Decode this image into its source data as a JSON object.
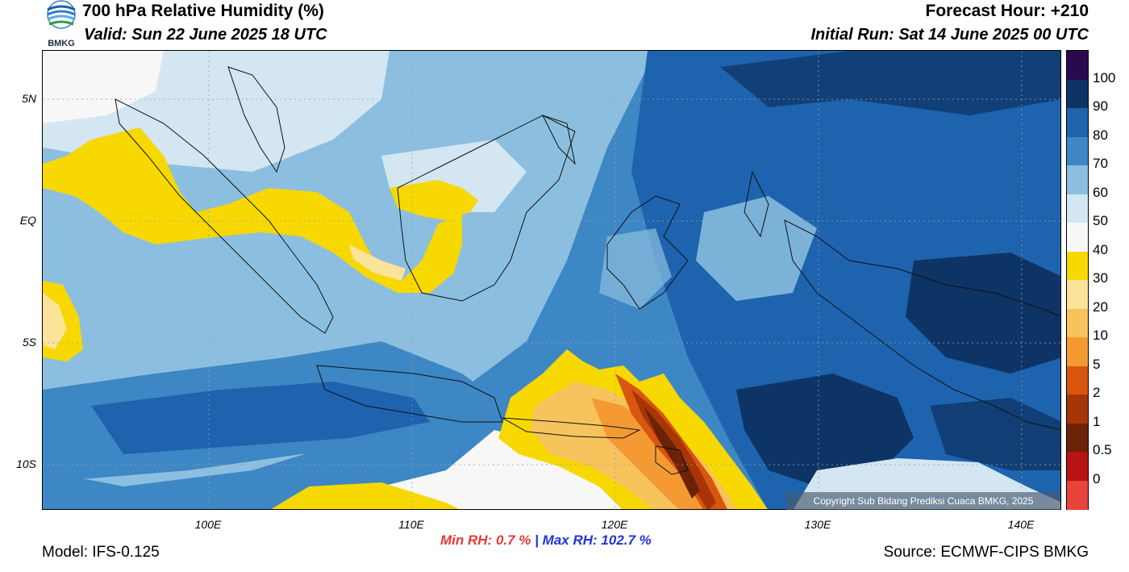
{
  "header": {
    "title": "700 hPa Relative Humidity (%)",
    "valid": "Valid: Sun 22 June 2025 18 UTC",
    "forecast_hour": "Forecast Hour: +210",
    "initial_run": "Initial Run: Sat 14 June 2025 00 UTC",
    "logo_text": "BMKG"
  },
  "axes": {
    "lat_labels": [
      "5N",
      "EQ",
      "5S",
      "10S"
    ],
    "lon_labels": [
      "100E",
      "110E",
      "120E",
      "130E",
      "140E"
    ]
  },
  "colorbar": {
    "labels": [
      "100",
      "90",
      "80",
      "70",
      "60",
      "50",
      "40",
      "30",
      "20",
      "10",
      "5",
      "2",
      "1",
      "0.5",
      "0"
    ],
    "colors": [
      "#2a0a4e",
      "#0e3466",
      "#1e63ae",
      "#3d87c4",
      "#8cbfdf",
      "#d3e6f2",
      "#f7f7f7",
      "#f7d800",
      "#fbe39a",
      "#f7c35c",
      "#f59a33",
      "#d8560f",
      "#a83508",
      "#6b2207",
      "#b81414",
      "#e8443a"
    ]
  },
  "stats": {
    "min_label": "Min RH:",
    "min_value": "0.7 %",
    "sep": "|",
    "max_label": "Max RH:",
    "max_value": "102.7 %"
  },
  "footer": {
    "model": "Model: IFS-0.125",
    "source": "Source: ECMWF-CIPS BMKG",
    "copyright": "Copyright Sub Bidang Prediksi Cuaca BMKG, 2025"
  }
}
